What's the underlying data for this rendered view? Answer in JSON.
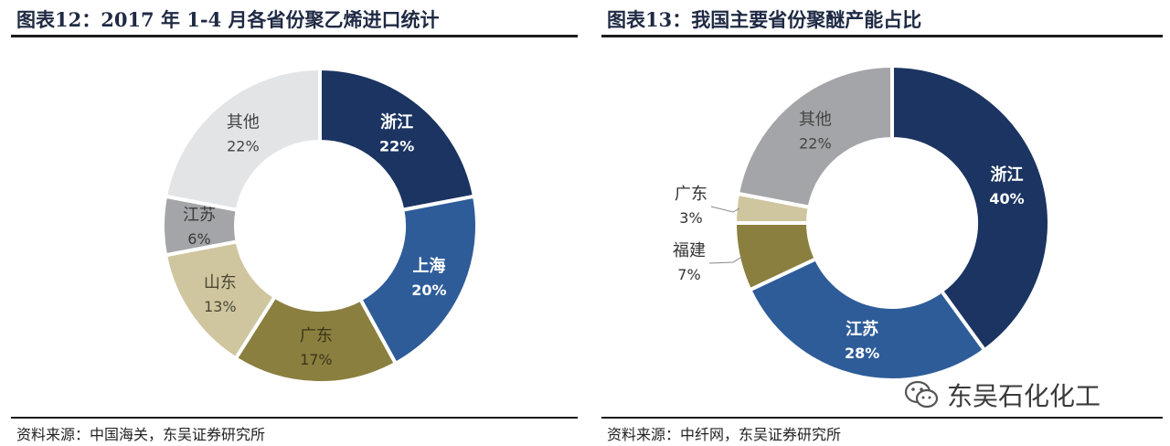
{
  "charts": [
    {
      "title": "图表12：2017 年 1-4 月各省份聚乙烯进口统计",
      "source": "资料来源：中国海关，东吴证券研究所",
      "chart_data": {
        "type": "pie",
        "donut": true,
        "title": "图表12：2017 年 1-4 月各省份聚乙烯进口统计",
        "slices": [
          {
            "label": "浙江",
            "value": 22,
            "value_label": "22%",
            "color": "#1b3461",
            "text_color": "#ffffff"
          },
          {
            "label": "上海",
            "value": 20,
            "value_label": "20%",
            "color": "#2e5c99",
            "text_color": "#ffffff"
          },
          {
            "label": "广东",
            "value": 17,
            "value_label": "17%",
            "color": "#8a7f3f",
            "text_color": "#3a3518"
          },
          {
            "label": "山东",
            "value": 13,
            "value_label": "13%",
            "color": "#cfc6a0",
            "text_color": "#4a4632"
          },
          {
            "label": "江苏",
            "value": 6,
            "value_label": "6%",
            "color": "#a4a5a8",
            "text_color": "#3a3a3a"
          },
          {
            "label": "其他",
            "value": 22,
            "value_label": "22%",
            "color": "#e3e4e6",
            "text_color": "#444444"
          }
        ]
      }
    },
    {
      "title": "图表13：我国主要省份聚醚产能占比",
      "source": "资料来源：中纤网，东吴证券研究所",
      "chart_data": {
        "type": "pie",
        "donut": true,
        "title": "图表13：我国主要省份聚醚产能占比",
        "slices": [
          {
            "label": "浙江",
            "value": 40,
            "value_label": "40%",
            "color": "#1b3461",
            "text_color": "#ffffff"
          },
          {
            "label": "江苏",
            "value": 28,
            "value_label": "28%",
            "color": "#2e5c99",
            "text_color": "#ffffff"
          },
          {
            "label": "福建",
            "value": 7,
            "value_label": "7%",
            "color": "#8a7f3f",
            "text_color": "#3a3a3a"
          },
          {
            "label": "广东",
            "value": 3,
            "value_label": "3%",
            "color": "#cfc6a0",
            "text_color": "#3a3a3a"
          },
          {
            "label": "其他",
            "value": 22,
            "value_label": "22%",
            "color": "#a4a5a8",
            "text_color": "#444444"
          }
        ]
      }
    }
  ],
  "watermark": {
    "text": "东吴石化化工",
    "icon": "wechat-icon"
  }
}
